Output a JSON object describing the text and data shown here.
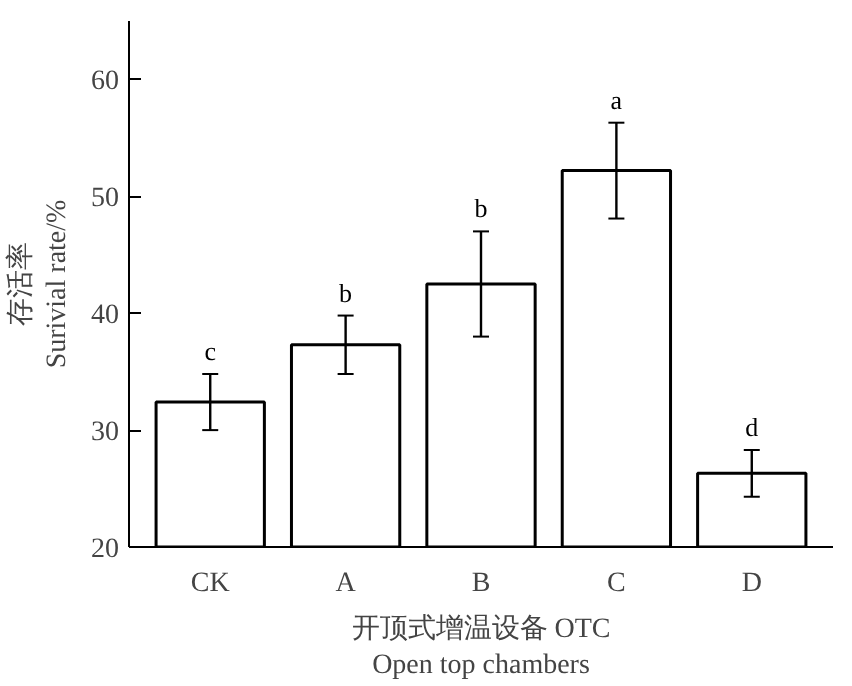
{
  "chart_data": {
    "type": "bar",
    "xlabel": "开顶式增温设备 OTC\nOpen top chambers",
    "ylabel": "存活率\nSurivial rate/%",
    "categories": [
      "CK",
      "A",
      "B",
      "C",
      "D"
    ],
    "values": [
      32.4,
      37.3,
      42.5,
      52.2,
      26.3
    ],
    "errors": [
      2.4,
      2.5,
      4.5,
      4.1,
      2.0
    ],
    "color": "#ffffff",
    "ylim": [
      20,
      65
    ],
    "yticks": [
      20,
      30,
      40,
      50,
      60
    ],
    "grid": false,
    "annotations": [
      "c",
      "b",
      "b",
      "a",
      "d"
    ]
  }
}
